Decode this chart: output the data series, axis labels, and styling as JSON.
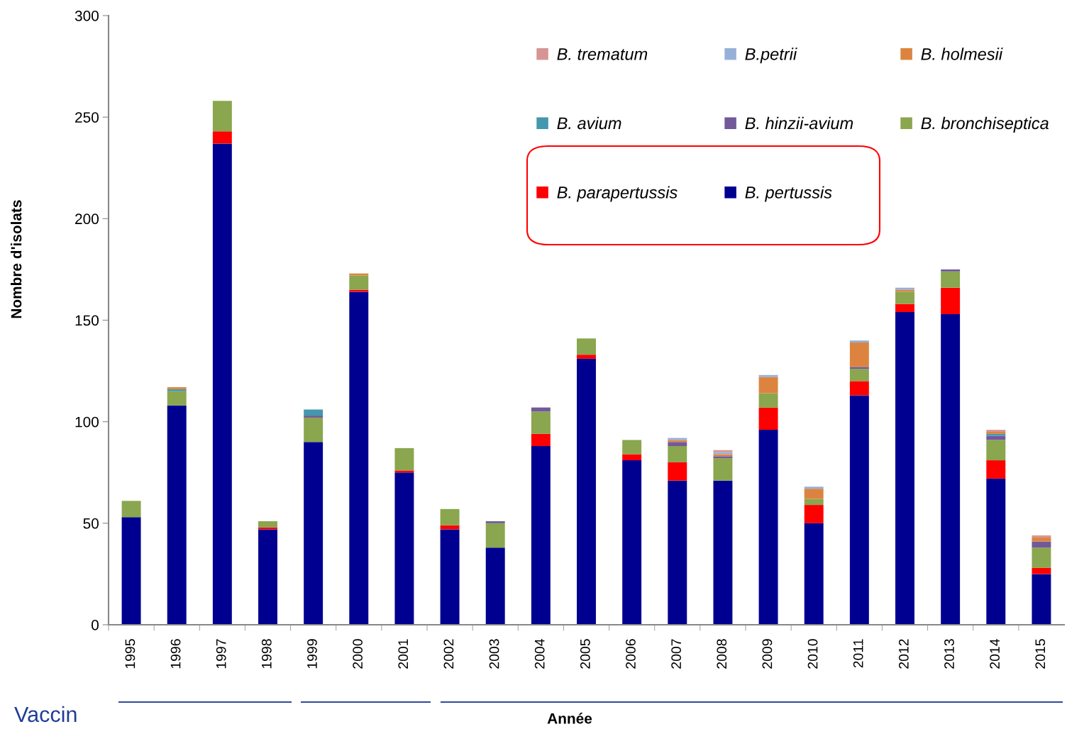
{
  "chart_data": {
    "type": "bar",
    "stacked": true,
    "xlabel": "Année",
    "ylabel": "Nombre d'isolats",
    "categories": [
      "1995",
      "1996",
      "1997",
      "1998",
      "1999",
      "2000",
      "2001",
      "2002",
      "2003",
      "2004",
      "2005",
      "2006",
      "2007",
      "2008",
      "2009",
      "2010",
      "2011",
      "2012",
      "2013",
      "2014",
      "2015"
    ],
    "series": [
      {
        "name": "B. pertussis",
        "color": "#000090",
        "values": [
          53,
          108,
          237,
          47,
          90,
          164,
          75,
          47,
          38,
          88,
          131,
          81,
          71,
          71,
          96,
          50,
          113,
          154,
          153,
          72,
          25
        ]
      },
      {
        "name": "B. parapertussis",
        "color": "#ff0000",
        "values": [
          null,
          null,
          6,
          1,
          null,
          1,
          1,
          2,
          null,
          6,
          2,
          3,
          9,
          null,
          11,
          9,
          7,
          4,
          13,
          9,
          3
        ]
      },
      {
        "name": "B. bronchiseptica",
        "color": "#8aa64e",
        "values": [
          8,
          7,
          15,
          3,
          12,
          7,
          11,
          8,
          12,
          11,
          8,
          7,
          8,
          11,
          7,
          3,
          6,
          6,
          8,
          10,
          10
        ]
      },
      {
        "name": "B. hinzii-avium",
        "color": "#72599a",
        "values": [
          null,
          null,
          null,
          null,
          1,
          null,
          null,
          null,
          1,
          2,
          null,
          null,
          2,
          1,
          null,
          null,
          1,
          null,
          1,
          2,
          3
        ]
      },
      {
        "name": "B. avium",
        "color": "#4398ae",
        "values": [
          null,
          1,
          null,
          null,
          3,
          null,
          null,
          null,
          null,
          null,
          null,
          null,
          null,
          null,
          null,
          null,
          null,
          null,
          null,
          1,
          null
        ]
      },
      {
        "name": "B. holmesii",
        "color": "#dc843f",
        "values": [
          null,
          1,
          null,
          null,
          null,
          1,
          null,
          null,
          null,
          null,
          null,
          null,
          1,
          1,
          8,
          5,
          12,
          1,
          null,
          1,
          2
        ]
      },
      {
        "name": "B.petrii",
        "color": "#96b0d8",
        "values": [
          null,
          null,
          null,
          null,
          null,
          null,
          null,
          null,
          null,
          null,
          null,
          null,
          1,
          1,
          1,
          1,
          1,
          1,
          null,
          null,
          null
        ]
      },
      {
        "name": "B. trematum",
        "color": "#d59593",
        "values": [
          null,
          null,
          null,
          null,
          null,
          null,
          null,
          null,
          null,
          null,
          null,
          null,
          null,
          1,
          null,
          null,
          null,
          null,
          null,
          1,
          1
        ]
      }
    ],
    "ylim": [
      0,
      300
    ],
    "yticks": [
      0,
      50,
      100,
      150,
      200,
      250,
      300
    ],
    "grid": false,
    "legend": "top right",
    "annotations": [
      "Vaccin"
    ]
  }
}
